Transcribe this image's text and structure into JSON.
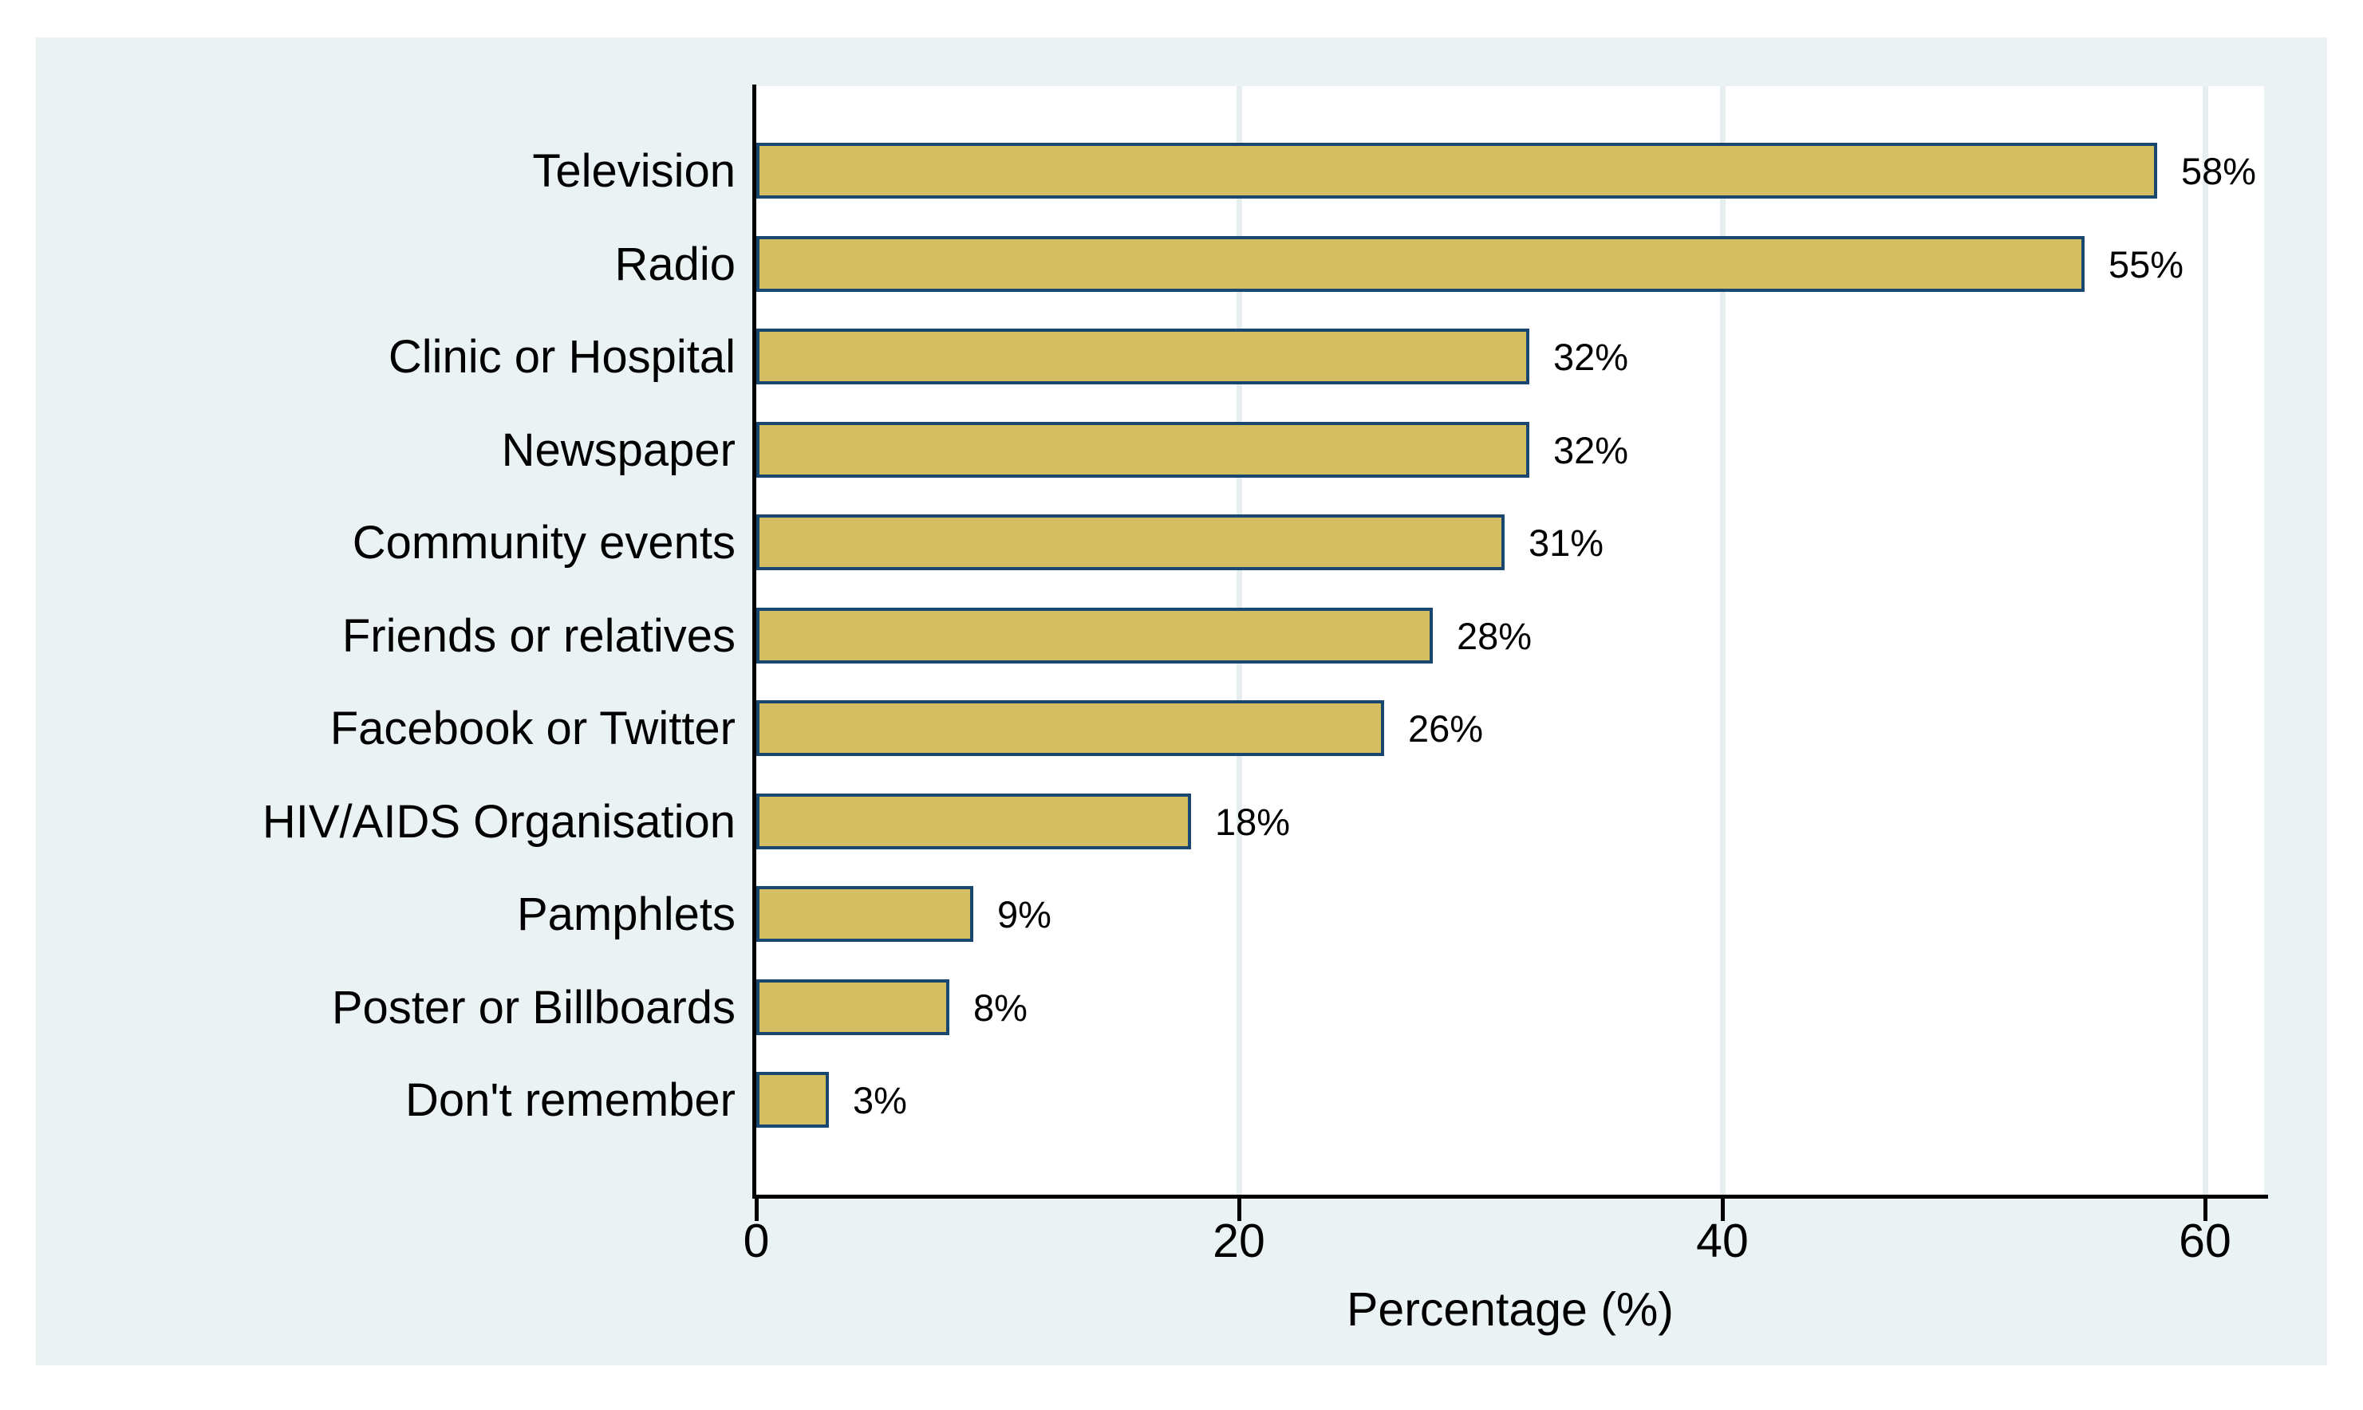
{
  "chart_data": {
    "type": "bar",
    "orientation": "horizontal",
    "title": "",
    "xlabel": "Percentage (%)",
    "ylabel": "",
    "categories": [
      "Television",
      "Radio",
      "Clinic or Hospital",
      "Newspaper",
      "Community events",
      "Friends or relatives",
      "Facebook or Twitter",
      "HIV/AIDS Organisation",
      "Pamphlets",
      "Poster or Billboards",
      "Don't remember"
    ],
    "values": [
      58,
      55,
      32,
      32,
      31,
      28,
      26,
      18,
      9,
      8,
      3
    ],
    "value_labels": [
      "58%",
      "55%",
      "32%",
      "32%",
      "31%",
      "28%",
      "26%",
      "18%",
      "9%",
      "8%",
      "3%"
    ],
    "xticks": [
      0,
      20,
      40,
      60
    ],
    "xlim": [
      0,
      62.4
    ],
    "grid": "vertical gridlines at ticks",
    "legend": "none",
    "colors": {
      "bar_fill": "#d3bf61",
      "bar_border": "#1a476f",
      "panel_background": "#eaf2f3",
      "plot_background": "#ffffff",
      "gridline": "#e7eef0",
      "axis_line": "#000000",
      "text": "#000000"
    }
  }
}
